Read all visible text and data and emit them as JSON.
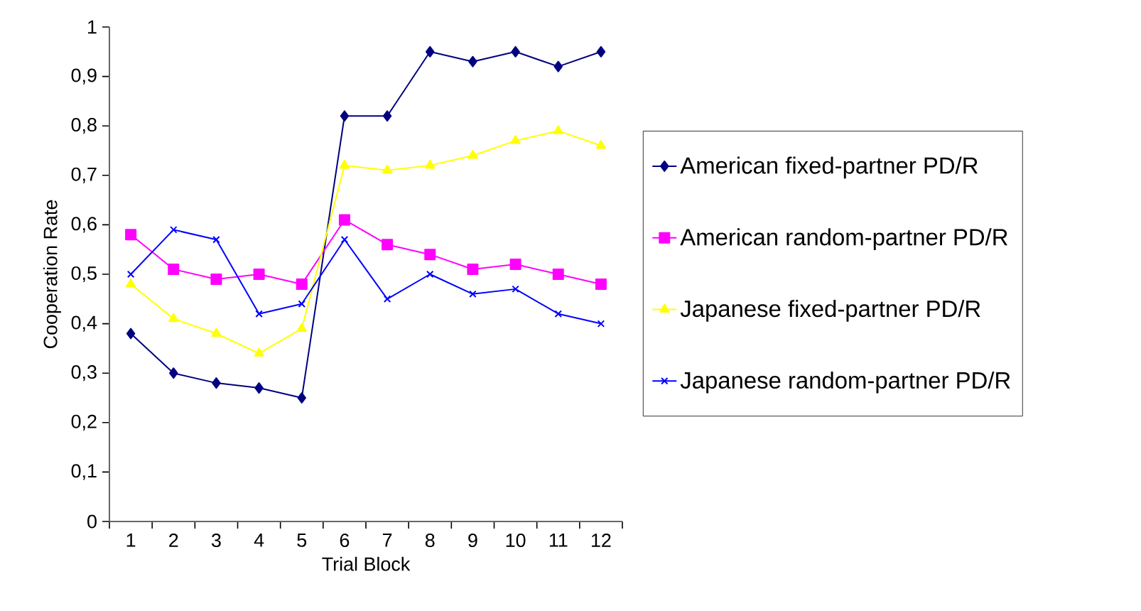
{
  "chart_data": {
    "type": "line",
    "xlabel": "Trial Block",
    "ylabel": "Cooperation Rate",
    "categories": [
      "1",
      "2",
      "3",
      "4",
      "5",
      "6",
      "7",
      "8",
      "9",
      "10",
      "11",
      "12"
    ],
    "series": [
      {
        "name": "American fixed-partner PD/R",
        "color": "#000080",
        "marker": "diamond",
        "values": [
          0.38,
          0.3,
          0.28,
          0.27,
          0.25,
          0.82,
          0.82,
          0.95,
          0.93,
          0.95,
          0.92,
          0.95
        ]
      },
      {
        "name": "American random-partner PD/R",
        "color": "#ff00ff",
        "marker": "square",
        "values": [
          0.58,
          0.51,
          0.49,
          0.5,
          0.48,
          0.61,
          0.56,
          0.54,
          0.51,
          0.52,
          0.5,
          0.48
        ]
      },
      {
        "name": "Japanese fixed-partner PD/R",
        "color": "#ffff00",
        "marker": "triangle",
        "values": [
          0.48,
          0.41,
          0.38,
          0.34,
          0.39,
          0.72,
          0.71,
          0.72,
          0.74,
          0.77,
          0.79,
          0.76
        ]
      },
      {
        "name": "Japanese random-partner PD/R",
        "color": "#0000ff",
        "marker": "cross",
        "values": [
          0.5,
          0.59,
          0.57,
          0.42,
          0.44,
          0.57,
          0.45,
          0.5,
          0.46,
          0.47,
          0.42,
          0.4
        ]
      }
    ],
    "ylim": [
      0,
      1
    ],
    "yticks": [
      0,
      {
        "value": 0.1,
        "label": "0,1"
      },
      {
        "value": 0.2,
        "label": "0,2"
      },
      {
        "value": 0.3,
        "label": "0,3"
      },
      {
        "value": 0.4,
        "label": "0,4"
      },
      {
        "value": 0.5,
        "label": "0,5"
      },
      {
        "value": 0.6,
        "label": "0,6"
      },
      {
        "value": 0.7,
        "label": "0,7"
      },
      {
        "value": 0.8,
        "label": "0,8"
      },
      {
        "value": 0.9,
        "label": "0,9"
      },
      1
    ],
    "grid": false,
    "legend": "right",
    "line_style": "solid"
  }
}
